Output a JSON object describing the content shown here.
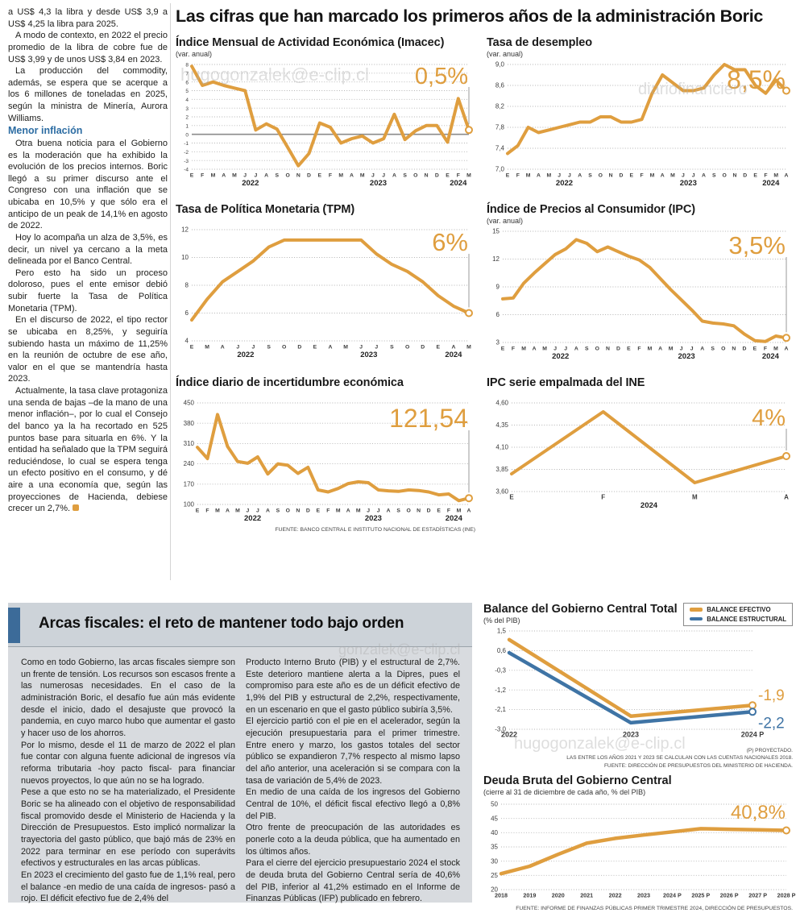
{
  "accent": {
    "orange": "#DF9E3F",
    "blue": "#3F74A5",
    "subhead": "#2D6DA3",
    "bar_blue": "#3C6B99"
  },
  "main_title": "Las cifras que han marcado los primeros años de la administración Boric",
  "watermarks": {
    "a": "hugogonzalek@e-clip.cl",
    "b": "diariofinanciero",
    "c": "gonzalek@e-clip.cl",
    "d": "hugogonzalek@e-clip.cl"
  },
  "article": {
    "paragraphs": [
      "a US$ 4,3 la libra y desde US$ 3,9 a US$ 4,25 la libra para 2025.",
      "A modo de contexto, en 2022 el precio promedio de la libra de cobre fue de US$ 3,99 y de unos US$ 3,84 en 2023.",
      "La producción del commodity, además, se espera que se acerque a los 6 millones de toneladas en 2025, según la ministra de Minería, Aurora Williams."
    ],
    "subhead": "Menor inflación",
    "paragraphs2": [
      "Otra buena noticia para el Gobierno es la moderación que ha exhibido la evolución de los precios internos. Boric llegó a su primer discurso ante el Congreso con una inflación que se ubicaba en 10,5% y que sólo era el anticipo de un peak de 14,1% en agosto de 2022.",
      "Hoy lo acompaña un alza de 3,5%, es decir, un nivel ya cercano a la meta delineada por el Banco Central.",
      "Pero esto ha sido un proceso doloroso, pues el ente emisor debió subir fuerte la Tasa de Política Monetaria (TPM).",
      "En el discurso de 2022, el tipo rector se ubicaba en 8,25%, y seguiría subiendo hasta un máximo de 11,25% en la reunión de octubre de ese año, valor en el que se mantendría hasta 2023.",
      "Actualmente, la tasa clave protagoniza una senda de bajas –de la mano de una menor inflación–, por lo cual el Consejo del banco ya la ha recortado en 525 puntos base para situarla en 6%. Y la entidad ha señalado que la TPM seguirá reduciéndose, lo cual se espera tenga un efecto positivo en el consumo, y dé aire a una economía que, según las proyecciones de Hacienda, debiese crecer un 2,7%."
    ]
  },
  "bottom": {
    "heading": "Arcas fiscales: el reto de mantener todo bajo orden",
    "col1": [
      "Como en todo Gobierno, las arcas fiscales siempre son un frente de tensión. Los recursos son escasos frente a las numerosas necesidades. En el caso de la administración Boric, el desafío fue aún más evidente desde el inicio, dado el desajuste que provocó la pandemia, en cuyo marco hubo que aumentar el gasto y hacer uso de los ahorros.",
      "Por lo mismo, desde el 11 de marzo de 2022 el plan fue contar con alguna fuente adicional de ingresos vía reforma tributaria -hoy pacto fiscal- para financiar nuevos proyectos, lo que aún no se ha logrado.",
      "Pese a que esto no se ha materializado, el Presidente Boric se ha alineado con el objetivo de responsabilidad fiscal promovido desde el Ministerio de Hacienda y la Dirección de Presupuestos. Esto implicó normalizar la trayectoria del gasto público, que bajó más de 23% en 2022 para terminar en ese período con superávits efectivos y estructurales en las arcas públicas.",
      "En 2023 el crecimiento del gasto fue de 1,1% real, pero el balance -en medio de una caída de ingresos- pasó a rojo. El déficit efectivo fue de 2,4% del"
    ],
    "col2": [
      "Producto Interno Bruto (PIB) y el estructural de 2,7%. Este deterioro mantiene alerta a la Dipres, pues el compromiso para este año es de un déficit efectivo de 1,9% del PIB y estructural de 2,2%, respectivamente, en un escenario en que el gasto público subiría 3,5%.",
      "El ejercicio partió con el pie en el acelerador, según la ejecución presupuestaria para el primer trimestre. Entre enero y marzo, los gastos totales del sector público se expandieron 7,7% respecto al mismo lapso del año anterior, una aceleración si se compara con la tasa de variación de 5,4% de 2023.",
      "En medio de una caída de los ingresos del Gobierno Central de 10%, el déficit fiscal efectivo llegó a 0,8% del PIB.",
      "Otro frente de preocupación de las autoridades es ponerle coto a la deuda pública, que ha aumentado en los últimos años.",
      "Para el cierre del ejercicio presupuestario 2024 el stock de deuda bruta del Gobierno Central sería de 40,6% del PIB, inferior al 41,2% estimado en el Informe de Finanzas Públicas (IFP) publicado en febrero."
    ]
  },
  "chart_data": [
    {
      "id": "imacec",
      "type": "line",
      "title": "Índice Mensual de Actividad Económica (Imacec)",
      "subtitle": "(var. anual)",
      "value_label": "0,5%",
      "value_size": 29,
      "value_y": 30,
      "callout": true,
      "zero_line": true,
      "ymin": -4,
      "ymax": 8,
      "yticks": [
        8,
        7,
        6,
        5,
        4,
        3,
        2,
        1,
        0,
        -1,
        -2,
        -3,
        -4
      ],
      "ylabels": [
        "8",
        "7",
        "6",
        "5",
        "4",
        "3",
        "2",
        "1",
        "0",
        "-1",
        "-2",
        "-3",
        "-4"
      ],
      "yls": 6.5,
      "ml": 20,
      "x_labels": [
        "E",
        "F",
        "M",
        "A",
        "M",
        "J",
        "J",
        "A",
        "S",
        "O",
        "N",
        "D",
        "E",
        "F",
        "M",
        "A",
        "M",
        "J",
        "J",
        "A",
        "S",
        "O",
        "N",
        "D",
        "E",
        "F",
        "M"
      ],
      "years": [
        {
          "label": "2022",
          "at": 5.5
        },
        {
          "label": "2023",
          "at": 17.5
        },
        {
          "label": "2024",
          "at": 25
        }
      ],
      "series": [
        {
          "name": "Imacec",
          "color": "#DF9E3F",
          "values": [
            7.8,
            5.6,
            6.0,
            5.6,
            5.3,
            5.0,
            0.5,
            1.2,
            0.6,
            -1.5,
            -3.6,
            -2.2,
            1.3,
            0.8,
            -1.0,
            -0.5,
            -0.2,
            -1.0,
            -0.5,
            2.3,
            -0.6,
            0.4,
            1.0,
            1.0,
            -0.9,
            4.1,
            0.5
          ]
        }
      ]
    },
    {
      "id": "desempleo",
      "type": "line",
      "title": "Tasa de desempleo",
      "subtitle": "(var. anual)",
      "value_label": "8,5%",
      "value_size": 32,
      "value_y": 36,
      "callout": true,
      "ymin": 7.0,
      "ymax": 9.0,
      "yticks": [
        9.0,
        8.6,
        8.2,
        7.8,
        7.4,
        7.0
      ],
      "ylabels": [
        "9,0",
        "8,6",
        "8,2",
        "7,8",
        "7,4",
        "7,0"
      ],
      "yls": 8,
      "ml": 26,
      "x_labels": [
        "E",
        "F",
        "M",
        "A",
        "M",
        "J",
        "J",
        "A",
        "S",
        "O",
        "N",
        "D",
        "E",
        "F",
        "M",
        "A",
        "M",
        "J",
        "J",
        "A",
        "S",
        "O",
        "N",
        "D",
        "E",
        "F",
        "M",
        "A"
      ],
      "years": [
        {
          "label": "2022",
          "at": 5.5
        },
        {
          "label": "2023",
          "at": 17.5
        },
        {
          "label": "2024",
          "at": 25.5
        }
      ],
      "series": [
        {
          "name": "Tasa de desempleo",
          "color": "#DF9E3F",
          "values": [
            7.3,
            7.45,
            7.8,
            7.7,
            7.75,
            7.8,
            7.85,
            7.9,
            7.9,
            8.0,
            8.0,
            7.9,
            7.9,
            7.95,
            8.45,
            8.8,
            8.65,
            8.5,
            8.5,
            8.55,
            8.8,
            9.0,
            8.9,
            8.9,
            8.6,
            8.45,
            8.7,
            8.5
          ]
        }
      ]
    },
    {
      "id": "tpm",
      "type": "line",
      "title": "Tasa de Política Monetaria (TPM)",
      "value_label": "6%",
      "value_size": 31,
      "value_y": 32,
      "callout": true,
      "ymin": 4,
      "ymax": 12,
      "yticks": [
        12,
        10,
        8,
        6,
        4
      ],
      "ylabels": [
        "12",
        "10",
        "8",
        "6",
        "4"
      ],
      "yls": 8,
      "ml": 20,
      "x_labels": [
        "E",
        "M",
        "A",
        "J",
        "J",
        "S",
        "O",
        "D",
        "E",
        "A",
        "M",
        "J",
        "J",
        "S",
        "O",
        "D",
        "E",
        "A",
        "M"
      ],
      "years": [
        {
          "label": "2022",
          "at": 3.5
        },
        {
          "label": "2023",
          "at": 11.5
        },
        {
          "label": "2024",
          "at": 17
        }
      ],
      "series": [
        {
          "name": "TPM",
          "color": "#DF9E3F",
          "values": [
            5.5,
            7.0,
            8.25,
            9.0,
            9.75,
            10.75,
            11.25,
            11.25,
            11.25,
            11.25,
            11.25,
            11.25,
            10.25,
            9.5,
            9.0,
            8.25,
            7.25,
            6.5,
            6.0
          ]
        }
      ]
    },
    {
      "id": "ipc",
      "type": "line",
      "title": "Índice de Precios al Consumidor (IPC)",
      "subtitle": "(var. anual)",
      "value_label": "3,5%",
      "value_size": 31,
      "value_y": 34,
      "callout": true,
      "ymin": 3,
      "ymax": 15,
      "yticks": [
        15,
        12,
        9,
        6,
        3
      ],
      "ylabels": [
        "15",
        "12",
        "9",
        "6",
        "3"
      ],
      "yls": 8,
      "ml": 20,
      "x_labels": [
        "E",
        "F",
        "M",
        "A",
        "M",
        "J",
        "J",
        "A",
        "S",
        "O",
        "N",
        "D",
        "E",
        "F",
        "M",
        "A",
        "M",
        "J",
        "J",
        "A",
        "S",
        "O",
        "N",
        "D",
        "E",
        "F",
        "M",
        "A"
      ],
      "years": [
        {
          "label": "2022",
          "at": 5.5
        },
        {
          "label": "2023",
          "at": 17.5
        },
        {
          "label": "2024",
          "at": 25.5
        }
      ],
      "series": [
        {
          "name": "IPC",
          "color": "#DF9E3F",
          "values": [
            7.7,
            7.8,
            9.4,
            10.5,
            11.5,
            12.5,
            13.1,
            14.1,
            13.7,
            12.8,
            13.3,
            12.8,
            12.3,
            11.9,
            11.1,
            9.9,
            8.7,
            7.6,
            6.5,
            5.3,
            5.1,
            5.0,
            4.8,
            3.9,
            3.2,
            3.1,
            3.7,
            3.5
          ]
        }
      ]
    },
    {
      "id": "incertidumbre",
      "type": "line",
      "title": "Índice diario de incertidumbre económica",
      "value_label": "121,54",
      "value_size": 32,
      "value_y": 36,
      "callout": true,
      "ymin": 100,
      "ymax": 450,
      "yticks": [
        450,
        380,
        310,
        240,
        170,
        100
      ],
      "ylabels": [
        "450",
        "380",
        "310",
        "240",
        "170",
        "100"
      ],
      "yls": 8,
      "ml": 27,
      "x_labels": [
        "E",
        "F",
        "M",
        "A",
        "M",
        "J",
        "J",
        "A",
        "S",
        "O",
        "N",
        "D",
        "E",
        "F",
        "M",
        "A",
        "M",
        "J",
        "J",
        "A",
        "S",
        "O",
        "N",
        "D",
        "E",
        "F",
        "M",
        "A"
      ],
      "years": [
        {
          "label": "2022",
          "at": 5.5
        },
        {
          "label": "2023",
          "at": 17.5
        },
        {
          "label": "2024",
          "at": 25.5
        }
      ],
      "series": [
        {
          "name": "Incertidumbre económica",
          "color": "#DF9E3F",
          "values": [
            297,
            258,
            410,
            300,
            248,
            242,
            264,
            205,
            240,
            235,
            207,
            228,
            150,
            143,
            155,
            172,
            178,
            175,
            150,
            147,
            145,
            150,
            148,
            143,
            133,
            136,
            113,
            121.54
          ]
        }
      ],
      "source": "FUENTE: BANCO CENTRAL E INSTITUTO NACIONAL DE ESTADÍSTICAS (INE)"
    },
    {
      "id": "ipc-empalmada",
      "type": "line",
      "title": "IPC serie empalmada del INE",
      "value_label": "4%",
      "value_size": 29,
      "value_y": 34,
      "callout": true,
      "ymin": 3.6,
      "ymax": 4.6,
      "yticks": [
        4.6,
        4.35,
        4.1,
        3.85,
        3.6
      ],
      "ylabels": [
        "4,60",
        "4,35",
        "4,10",
        "3,85",
        "3,60"
      ],
      "yls": 8,
      "ml": 31,
      "xls": 8,
      "x_labels": [
        "E",
        "F",
        "M",
        "A"
      ],
      "years": [
        {
          "label": "2024",
          "at": 1.5
        }
      ],
      "series": [
        {
          "name": "IPC serie empalmada",
          "color": "#DF9E3F",
          "values": [
            3.8,
            4.5,
            3.7,
            4.0
          ]
        }
      ]
    },
    {
      "id": "balance",
      "type": "line",
      "title": "Balance del Gobierno Central Total",
      "subtitle": "(% del PIB)",
      "legend_position": "top-right",
      "ymin": -3.0,
      "ymax": 1.5,
      "yticks": [
        1.5,
        0.6,
        -0.3,
        -1.2,
        -2.1,
        -3.0
      ],
      "ylabels": [
        "1,5",
        "0,6",
        "-0,3",
        "-1,2",
        "-2,1",
        "-3,0"
      ],
      "yls": 8,
      "ml": 32,
      "mr": 50,
      "mb": 20,
      "xls": 9,
      "lw": 4.5,
      "x_labels": [
        "2022",
        "2023",
        "2024 P"
      ],
      "series": [
        {
          "name": "BALANCE EFECTIVO",
          "color": "#DF9E3F",
          "values": [
            1.1,
            -2.4,
            -1.9
          ],
          "end_label": "-1,9",
          "end_label_dy": -6
        },
        {
          "name": "BALANCE ESTRUCTURAL",
          "color": "#3F74A5",
          "values": [
            0.5,
            -2.7,
            -2.2
          ],
          "end_label": "-2,2",
          "end_label_dy": 20
        }
      ],
      "footnotes": [
        "(P) PROYECTADO.",
        "LAS ENTRE LOS AÑOS 2021 Y 2023 SE CALCULAN  CON LAS CUENTAS NACIONALES 2018.",
        "FUENTE: DIRECCIÓN DE PRESUPUESTOS DEL MINISTERIO DE HACIENDA."
      ]
    },
    {
      "id": "deuda",
      "type": "line",
      "title": "Deuda Bruta del Gobierno Central",
      "subtitle": "(cierre al 31 de diciembre de cada año, % del PIB)",
      "value_label": "40,8%",
      "value_size": 24,
      "value_y": 26,
      "callout": false,
      "ymin": 20,
      "ymax": 50,
      "yticks": [
        50,
        45,
        40,
        35,
        30,
        25,
        20
      ],
      "ylabels": [
        "50",
        "45",
        "40",
        "35",
        "30",
        "25",
        "20"
      ],
      "yls": 8,
      "ml": 22,
      "mt": 8,
      "mb": 18,
      "xls": 7.2,
      "lw": 4.5,
      "x_labels": [
        "2018",
        "2019",
        "2020",
        "2021",
        "2022",
        "2023",
        "2024 P",
        "2025 P",
        "2026 P",
        "2027 P",
        "2028 P"
      ],
      "series": [
        {
          "name": "Deuda bruta",
          "color": "#DF9E3F",
          "values": [
            25.6,
            28.2,
            32.4,
            36.3,
            38.0,
            39.2,
            40.3,
            41.4,
            41.2,
            41.0,
            40.8
          ]
        }
      ],
      "source": "FUENTE: INFORME DE FINANZAS PÚBLICAS PRIMER TRIMESTRE 2024, DIRECCIÓN DE PRESUPUESTOS."
    }
  ]
}
